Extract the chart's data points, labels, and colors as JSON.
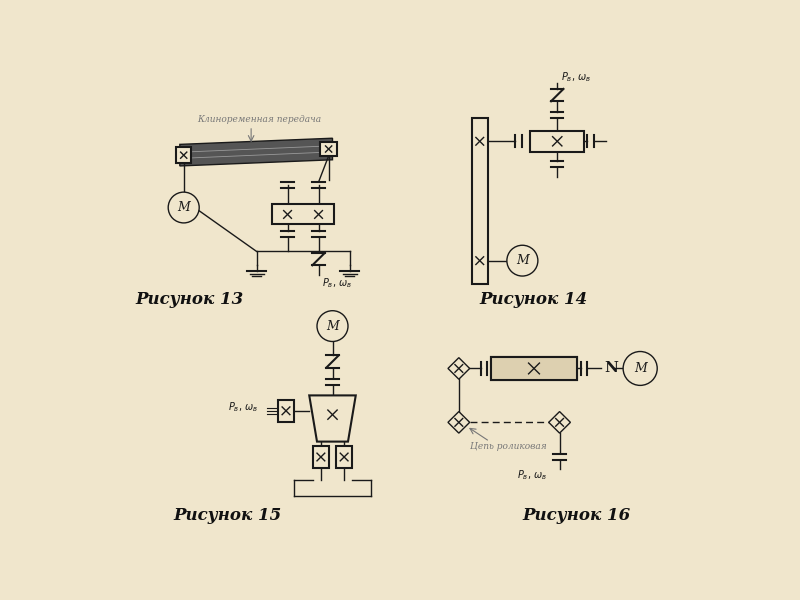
{
  "bg_color": "#f0e6cc",
  "line_color": "#1a1a1a",
  "gray_color": "#777777",
  "title13": "Рисунок 13",
  "title14": "Рисунок 14",
  "title15": "Рисунок 15",
  "title16": "Рисунок 16",
  "label_belt": "Клиноременная передача",
  "label_chain": "Цепь роликовая",
  "label_Pw": "$P_{\\mathit{в}},\\, \\omega_{\\mathit{в}}$"
}
